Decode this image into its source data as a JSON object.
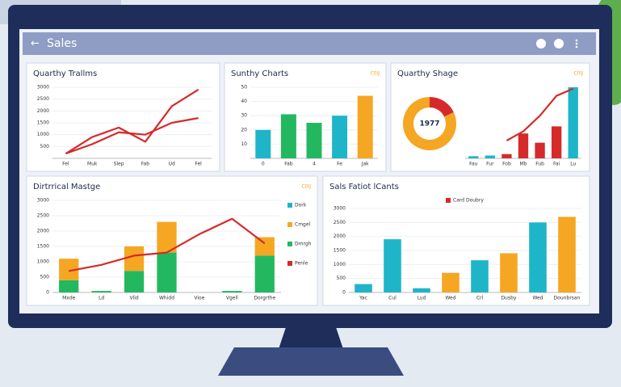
{
  "header": {
    "title": "Sales"
  },
  "panels": [
    {
      "title": "Quarthy Trallms",
      "chart": {
        "type": "line",
        "categories": [
          "Fel",
          "Muk",
          "Slep",
          "Fab",
          "Ud",
          "Fel"
        ],
        "ylim": [
          0,
          3000
        ],
        "yticks": [
          500,
          1000,
          1500,
          2000,
          2500,
          3000
        ],
        "series": [
          {
            "kind": "line",
            "color": "#d62a2a",
            "values": [
              200,
              900,
              1300,
              700,
              2200,
              2900
            ]
          },
          {
            "kind": "line",
            "color": "#d62a2a",
            "values": [
              200,
              600,
              1100,
              1000,
              1500,
              1700
            ]
          }
        ]
      }
    },
    {
      "title": "Sunthy Charts",
      "tag": "C0IJ",
      "chart": {
        "type": "bar",
        "categories": [
          "0",
          "Fab",
          "4",
          "Fe",
          "Jak"
        ],
        "ylim": [
          0,
          50
        ],
        "yticks": [
          10,
          20,
          30,
          40,
          50
        ],
        "series": [
          {
            "kind": "bar",
            "colors": [
              "#1fb5c9",
              "#23b860",
              "#23b860",
              "#1fb5c9",
              "#f5a623"
            ],
            "values": [
              20,
              31,
              25,
              30,
              44
            ]
          }
        ]
      }
    },
    {
      "title": "Quarthy Shage",
      "tag": "C0IJ",
      "chart": {
        "type": "combo",
        "categories": [
          "Fau",
          "Fur",
          "Fob",
          "Mb",
          "Fub",
          "Fai",
          "Lu"
        ],
        "ylim": [
          0,
          100
        ],
        "yticks": [],
        "donut": {
          "label": "1977",
          "values": [
            18,
            82
          ],
          "colors": [
            "#d62a2a",
            "#f5a623"
          ]
        },
        "series": [
          {
            "kind": "bar",
            "colors": [
              "#1fb5c9",
              "#1fb5c9",
              "#d62a2a",
              "#d62a2a",
              "#d62a2a",
              "#d62a2a",
              "#1fb5c9"
            ],
            "values": [
              3,
              4,
              6,
              35,
              22,
              45,
              100
            ]
          },
          {
            "kind": "line",
            "color": "#d62a2a",
            "values": [
              null,
              null,
              25,
              38,
              60,
              88,
              98
            ]
          }
        ]
      }
    },
    {
      "title": "Dirtrrical Mastge",
      "tag": "C0IJ",
      "legend_position": "right",
      "legend": [
        {
          "name": "Dork",
          "color": "#1fb5c9"
        },
        {
          "name": "Cmgel",
          "color": "#f5a623"
        },
        {
          "name": "Dmrgh",
          "color": "#23b860"
        },
        {
          "name": "Penle",
          "color": "#d62a2a"
        }
      ],
      "chart": {
        "type": "bar",
        "stacked": true,
        "categories": [
          "Mxde",
          "Ld",
          "Vlid",
          "Whidd",
          "Vioe",
          "Vgell",
          "Dorgrthe"
        ],
        "ylim": [
          0,
          3000
        ],
        "yticks": [
          0,
          500,
          1000,
          1500,
          2000,
          2500,
          3000
        ],
        "series": [
          {
            "kind": "bar",
            "color": "#23b860",
            "values": [
              400,
              50,
              700,
              1300,
              0,
              50,
              1200
            ]
          },
          {
            "kind": "bar",
            "color": "#f5a623",
            "values": [
              700,
              0,
              800,
              1000,
              0,
              0,
              600
            ]
          },
          {
            "kind": "line",
            "color": "#d62a2a",
            "values": [
              700,
              900,
              1200,
              1300,
              1900,
              2400,
              1600
            ]
          }
        ]
      }
    },
    {
      "title": "Sals Fatiot lCants",
      "legend_position": "top",
      "legend": [
        {
          "name": "Card Doubry",
          "color": "#d62a2a"
        }
      ],
      "chart": {
        "type": "bar",
        "categories": [
          "Yac",
          "Cul",
          "Lud",
          "Wed",
          "Crl",
          "Dusby",
          "Wed",
          "Dounbrsan"
        ],
        "ylim": [
          0,
          3000
        ],
        "yticks": [
          0,
          500,
          1000,
          1500,
          2000,
          2500,
          3000
        ],
        "series": [
          {
            "kind": "bar",
            "colors": [
              "#1fb5c9",
              "#1fb5c9",
              "#1fb5c9",
              "#f5a623",
              "#1fb5c9",
              "#f5a623",
              "#1fb5c9",
              "#f5a623"
            ],
            "values": [
              300,
              1900,
              150,
              700,
              1150,
              1400,
              2500,
              2700
            ]
          }
        ]
      }
    }
  ]
}
